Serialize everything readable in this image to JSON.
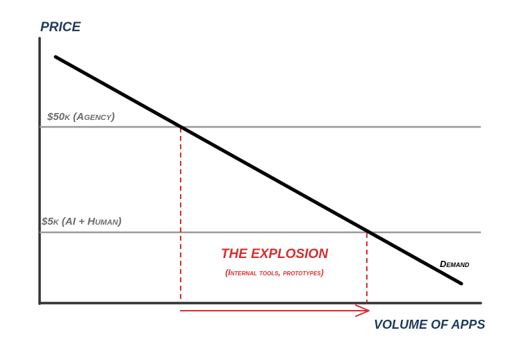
{
  "diagram": {
    "y_axis_label": "PRICE",
    "x_axis_label": "VOLUME OF APPS",
    "levels": [
      {
        "label": "$50k (Agency)"
      },
      {
        "label": "$5k (AI + Human)"
      }
    ],
    "curve_label": "Demand",
    "region_title": "THE EXPLOSION",
    "region_subtitle": "(Internal tools, prototypes)",
    "colors": {
      "axis": "#333333",
      "demand": "#000000",
      "level_lines": "#999999",
      "highlight": "#d62e2e",
      "axis_labels": "#1f3a5c",
      "level_labels": "#6b6b6b"
    }
  }
}
